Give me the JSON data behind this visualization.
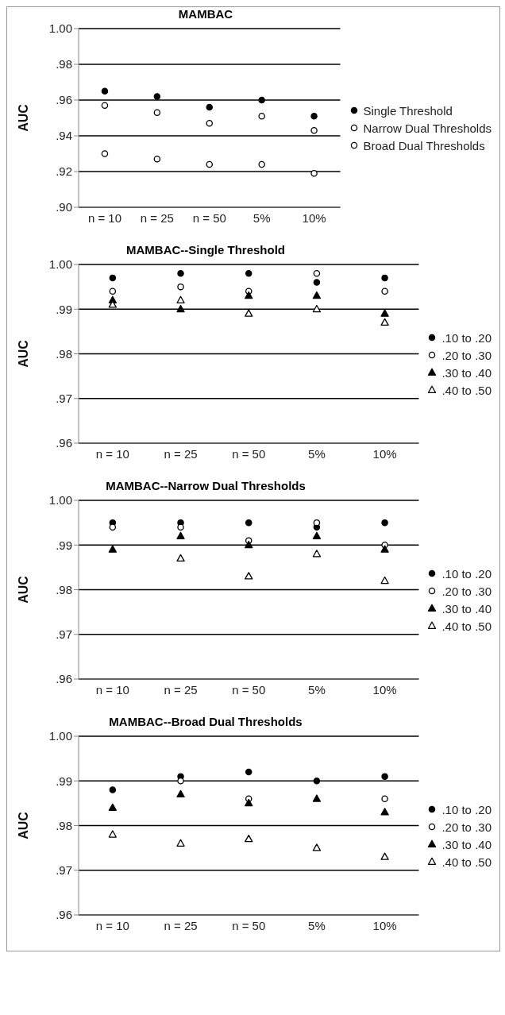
{
  "chart_data": [
    {
      "type": "scatter",
      "title": "MAMBAC",
      "ylabel": "AUC",
      "categories": [
        "n = 10",
        "n = 25",
        "n = 50",
        "5%",
        "10%"
      ],
      "ylim": [
        0.9,
        1.0
      ],
      "yticks": [
        {
          "value": 0.9,
          "label": ".90"
        },
        {
          "value": 0.92,
          "label": ".92"
        },
        {
          "value": 0.94,
          "label": ".94"
        },
        {
          "value": 0.96,
          "label": ".96"
        },
        {
          "value": 0.98,
          "label": ".98"
        },
        {
          "value": 1.0,
          "label": "1.00"
        }
      ],
      "grid": "y",
      "legend": "right",
      "series": [
        {
          "name": "Single Threshold",
          "color": "#000000",
          "marker": "circle",
          "values": [
            0.965,
            0.962,
            0.956,
            0.96,
            0.951
          ]
        },
        {
          "name": "Narrow Dual Thresholds",
          "color": "#ffffff",
          "marker": "circle",
          "values": [
            0.957,
            0.953,
            0.947,
            0.951,
            0.943
          ]
        },
        {
          "name": "Broad Dual Thresholds",
          "color": "#ffffff",
          "marker": "circle",
          "values": [
            0.93,
            0.927,
            0.924,
            0.924,
            0.919
          ]
        }
      ]
    },
    {
      "type": "scatter",
      "title": "MAMBAC--Single Threshold",
      "ylabel": "AUC",
      "categories": [
        "n = 10",
        "n = 25",
        "n = 50",
        "5%",
        "10%"
      ],
      "ylim": [
        0.96,
        1.0
      ],
      "yticks": [
        {
          "value": 0.96,
          "label": ".96"
        },
        {
          "value": 0.97,
          "label": ".97"
        },
        {
          "value": 0.98,
          "label": ".98"
        },
        {
          "value": 0.99,
          "label": ".99"
        },
        {
          "value": 1.0,
          "label": "1.00"
        }
      ],
      "grid": "y",
      "legend": "right",
      "series": [
        {
          "name": ".10 to .20",
          "color": "#000000",
          "marker": "circle",
          "values": [
            0.997,
            0.998,
            0.998,
            0.996,
            0.997
          ]
        },
        {
          "name": ".20 to .30",
          "color": "#ffffff",
          "marker": "circle",
          "values": [
            0.994,
            0.995,
            0.994,
            0.998,
            0.994
          ]
        },
        {
          "name": ".30 to .40",
          "color": "#000000",
          "marker": "triangle",
          "values": [
            0.992,
            0.99,
            0.993,
            0.993,
            0.989
          ]
        },
        {
          "name": ".40 to .50",
          "color": "#ffffff",
          "marker": "triangle",
          "values": [
            0.991,
            0.992,
            0.989,
            0.99,
            0.987
          ]
        }
      ]
    },
    {
      "type": "scatter",
      "title": "MAMBAC--Narrow Dual Thresholds",
      "ylabel": "AUC",
      "categories": [
        "n = 10",
        "n = 25",
        "n = 50",
        "5%",
        "10%"
      ],
      "ylim": [
        0.96,
        1.0
      ],
      "yticks": [
        {
          "value": 0.96,
          "label": ".96"
        },
        {
          "value": 0.97,
          "label": ".97"
        },
        {
          "value": 0.98,
          "label": ".98"
        },
        {
          "value": 0.99,
          "label": ".99"
        },
        {
          "value": 1.0,
          "label": "1.00"
        }
      ],
      "grid": "y",
      "legend": "right",
      "series": [
        {
          "name": ".10 to .20",
          "color": "#000000",
          "marker": "circle",
          "values": [
            0.995,
            0.995,
            0.995,
            0.994,
            0.995
          ]
        },
        {
          "name": ".20 to .30",
          "color": "#ffffff",
          "marker": "circle",
          "values": [
            0.994,
            0.994,
            0.991,
            0.995,
            0.99
          ]
        },
        {
          "name": ".30 to .40",
          "color": "#000000",
          "marker": "triangle",
          "values": [
            0.989,
            0.992,
            0.99,
            0.992,
            0.989
          ]
        },
        {
          "name": ".40 to .50",
          "color": "#ffffff",
          "marker": "triangle",
          "values": [
            null,
            0.987,
            0.983,
            0.988,
            0.982
          ]
        }
      ]
    },
    {
      "type": "scatter",
      "title": "MAMBAC--Broad Dual Thresholds",
      "ylabel": "AUC",
      "categories": [
        "n = 10",
        "n = 25",
        "n = 50",
        "5%",
        "10%"
      ],
      "ylim": [
        0.96,
        1.0
      ],
      "yticks": [
        {
          "value": 0.96,
          "label": ".96"
        },
        {
          "value": 0.97,
          "label": ".97"
        },
        {
          "value": 0.98,
          "label": ".98"
        },
        {
          "value": 0.99,
          "label": ".99"
        },
        {
          "value": 1.0,
          "label": "1.00"
        }
      ],
      "grid": "y",
      "legend": "right",
      "series": [
        {
          "name": ".10 to .20",
          "color": "#000000",
          "marker": "circle",
          "values": [
            0.988,
            0.991,
            0.992,
            0.99,
            0.991
          ]
        },
        {
          "name": ".20 to .30",
          "color": "#ffffff",
          "marker": "circle",
          "values": [
            null,
            0.99,
            0.986,
            null,
            0.986
          ]
        },
        {
          "name": ".30 to .40",
          "color": "#000000",
          "marker": "triangle",
          "values": [
            0.984,
            0.987,
            0.985,
            0.986,
            0.983
          ]
        },
        {
          "name": ".40 to .50",
          "color": "#ffffff",
          "marker": "triangle",
          "values": [
            0.978,
            0.976,
            0.977,
            0.975,
            0.973
          ]
        }
      ]
    }
  ]
}
